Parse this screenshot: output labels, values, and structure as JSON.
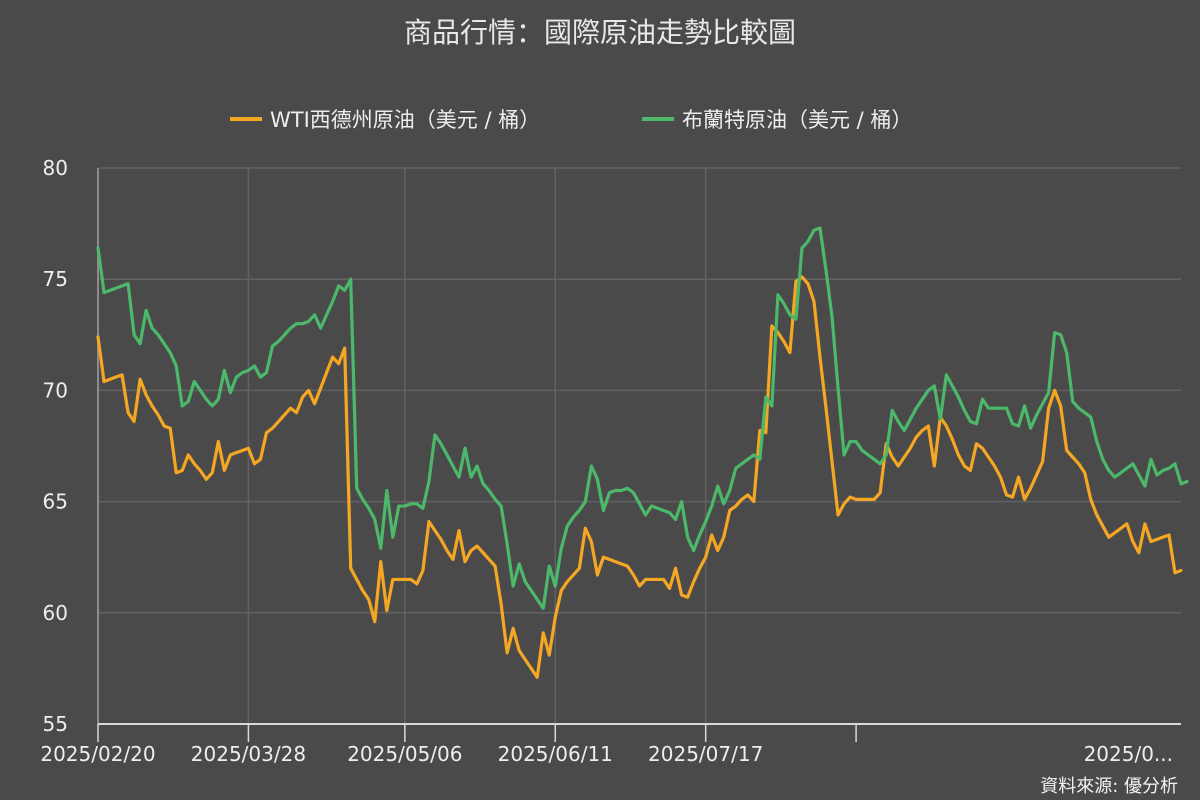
{
  "chart_data": {
    "type": "line",
    "title": "商品行情：國際原油走勢比較圖",
    "source": "資料來源: 優分析",
    "xlabel": "",
    "ylabel": "",
    "ylim": [
      55,
      80
    ],
    "y_ticks": [
      55,
      60,
      65,
      70,
      75,
      80
    ],
    "y_tick_labels": [
      "55",
      "60",
      "65",
      "70",
      "75",
      "80"
    ],
    "x_tick_labels": [
      "2025/02/20",
      "2025/03/28",
      "2025/05/06",
      "2025/06/11",
      "2025/07/17",
      "2025/0..."
    ],
    "x_tick_index": [
      0,
      25,
      51,
      76,
      101,
      126
    ],
    "grid": true,
    "legend_position": "top",
    "series": [
      {
        "name": "WTI西德州原油（美元 / 桶）",
        "color": "#f5a623",
        "values": [
          72.4,
          70.4,
          70.5,
          70.6,
          70.7,
          69.0,
          68.6,
          70.5,
          69.8,
          69.3,
          68.9,
          68.4,
          68.3,
          66.3,
          66.4,
          67.1,
          66.7,
          66.4,
          66.0,
          66.3,
          67.7,
          66.4,
          67.1,
          67.2,
          67.3,
          67.4,
          66.7,
          66.9,
          68.1,
          68.3,
          68.6,
          68.9,
          69.2,
          69.0,
          69.7,
          70.0,
          69.4,
          70.1,
          70.8,
          71.5,
          71.2,
          71.9,
          62.0,
          61.5,
          61.0,
          60.6,
          59.6,
          62.3,
          60.1,
          61.5,
          61.5,
          61.5,
          61.5,
          61.3,
          61.9,
          64.1,
          63.7,
          63.3,
          62.8,
          62.4,
          63.7,
          62.3,
          62.8,
          63.0,
          62.7,
          62.4,
          62.1,
          60.4,
          58.2,
          59.3,
          58.3,
          57.9,
          57.5,
          57.1,
          59.1,
          58.1,
          59.8,
          61.0,
          61.4,
          61.7,
          62.0,
          63.8,
          63.2,
          61.7,
          62.5,
          62.4,
          62.3,
          62.2,
          62.1,
          61.7,
          61.2,
          61.5,
          61.5,
          61.5,
          61.5,
          61.1,
          62.0,
          60.8,
          60.7,
          61.4,
          62.0,
          62.5,
          63.5,
          62.8,
          63.4,
          64.6,
          64.8,
          65.1,
          65.3,
          65.0,
          68.2,
          68.1,
          72.9,
          72.6,
          72.2,
          71.7,
          74.9,
          75.1,
          74.8,
          74.0,
          71.5,
          69.2,
          66.8,
          64.4,
          64.9,
          65.2,
          65.1,
          65.1,
          65.1,
          65.1,
          65.4,
          67.6,
          67.0,
          66.6,
          67.0,
          67.4,
          67.9,
          68.2,
          68.4,
          66.6,
          68.8,
          68.4,
          67.8,
          67.1,
          66.6,
          66.4,
          67.6,
          67.4,
          67.0,
          66.6,
          66.1,
          65.3,
          65.2,
          66.1,
          65.1,
          65.6,
          66.2,
          66.8,
          69.2,
          70.0,
          69.3,
          67.3,
          67.0,
          66.7,
          66.3,
          65.1,
          64.4,
          63.9,
          63.4,
          63.6,
          63.8,
          64.0,
          63.2,
          62.7,
          64.0,
          63.2,
          63.3,
          63.4,
          63.5,
          61.8,
          61.9
        ]
      },
      {
        "name": "布蘭特原油（美元 / 桶）",
        "color": "#4cb86a",
        "values": [
          76.4,
          74.4,
          74.5,
          74.6,
          74.7,
          74.8,
          72.5,
          72.1,
          73.6,
          72.8,
          72.5,
          72.1,
          71.7,
          71.1,
          69.3,
          69.5,
          70.4,
          70.0,
          69.6,
          69.3,
          69.6,
          70.9,
          69.9,
          70.6,
          70.8,
          70.9,
          71.1,
          70.6,
          70.8,
          72.0,
          72.2,
          72.5,
          72.8,
          73.0,
          73.0,
          73.1,
          73.4,
          72.8,
          73.4,
          74.0,
          74.7,
          74.5,
          75.0,
          65.6,
          65.1,
          64.7,
          64.2,
          62.9,
          65.5,
          63.4,
          64.8,
          64.8,
          64.9,
          64.9,
          64.7,
          65.9,
          68.0,
          67.6,
          67.1,
          66.6,
          66.1,
          67.4,
          66.1,
          66.6,
          65.8,
          65.5,
          65.1,
          64.8,
          63.1,
          61.2,
          62.2,
          61.4,
          61.0,
          60.6,
          60.2,
          62.1,
          61.2,
          62.9,
          63.9,
          64.3,
          64.6,
          65.0,
          66.6,
          66.0,
          64.6,
          65.4,
          65.5,
          65.5,
          65.6,
          65.4,
          64.9,
          64.4,
          64.8,
          64.7,
          64.6,
          64.5,
          64.2,
          65.0,
          63.4,
          62.8,
          63.5,
          64.1,
          64.8,
          65.7,
          64.9,
          65.5,
          66.5,
          66.7,
          66.9,
          67.1,
          66.9,
          69.7,
          69.3,
          74.3,
          73.9,
          73.4,
          73.2,
          76.4,
          76.7,
          77.2,
          77.3,
          75.4,
          73.3,
          70.1,
          67.1,
          67.7,
          67.7,
          67.3,
          67.1,
          66.9,
          66.7,
          67.1,
          69.1,
          68.6,
          68.2,
          68.7,
          69.2,
          69.6,
          70.0,
          70.2,
          68.7,
          70.7,
          70.2,
          69.7,
          69.1,
          68.6,
          68.5,
          69.6,
          69.2,
          69.2,
          69.2,
          69.2,
          68.5,
          68.4,
          69.3,
          68.3,
          68.9,
          69.4,
          69.9,
          72.6,
          72.5,
          71.7,
          69.5,
          69.2,
          69.0,
          68.8,
          67.7,
          66.9,
          66.4,
          66.1,
          66.3,
          66.5,
          66.7,
          66.2,
          65.7,
          66.9,
          66.2,
          66.4,
          66.5,
          66.7,
          65.8,
          65.9
        ]
      }
    ]
  }
}
